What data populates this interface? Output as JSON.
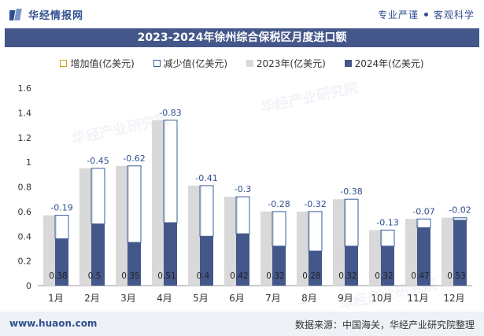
{
  "header": {
    "brand_name": "华经情报网",
    "tagline_left": "专业严谨",
    "tagline_right": "客观科学"
  },
  "watermark": "华经产业研究院",
  "chart_data": {
    "type": "bar",
    "title": "2023-2024年徐州综合保税区月度进口额",
    "categories": [
      "1月",
      "2月",
      "3月",
      "4月",
      "5月",
      "6月",
      "7月",
      "8月",
      "9月",
      "10月",
      "11月",
      "12月"
    ],
    "series": [
      {
        "name": "2023年(亿美元)",
        "values": [
          0.57,
          0.95,
          0.97,
          1.34,
          0.81,
          0.72,
          0.6,
          0.6,
          0.7,
          0.45,
          0.54,
          0.55
        ]
      },
      {
        "name": "2024年(亿美元)",
        "values": [
          0.38,
          0.5,
          0.35,
          0.51,
          0.4,
          0.42,
          0.32,
          0.28,
          0.32,
          0.32,
          0.47,
          0.53
        ]
      }
    ],
    "legend": [
      "增加值(亿美元)",
      "减少值(亿美元)",
      "2023年(亿美元)",
      "2024年(亿美元)"
    ],
    "decrease_labels": [
      "-0.19",
      "-0.45",
      "-0.62",
      "-0.83",
      "-0.41",
      "-0.3",
      "-0.28",
      "-0.32",
      "-0.38",
      "-0.13",
      "-0.07",
      "-0.02"
    ],
    "value_labels_2024": [
      "0.38",
      "0.5",
      "0.35",
      "0.51",
      "0.4",
      "0.42",
      "0.32",
      "0.28",
      "0.32",
      "0.32",
      "0.47",
      "0.53"
    ],
    "ylim": [
      0,
      1.6
    ],
    "yticks": [
      "0",
      "0.2",
      "0.4",
      "0.6",
      "0.8",
      "1",
      "1.2",
      "1.4",
      "1.6"
    ],
    "xlabel": "",
    "ylabel": "",
    "grid": false,
    "legend_position": "top",
    "colors": {
      "y2023": "#d9d9d9",
      "y2024": "#44578a",
      "decrease_border": "#3a5fa0",
      "increase_border": "#d4a017",
      "label_blue": "#2f4f8f"
    }
  },
  "footer": {
    "website": "www.huaon.com",
    "source": "数据来源：中国海关，华经产业研究院整理"
  }
}
